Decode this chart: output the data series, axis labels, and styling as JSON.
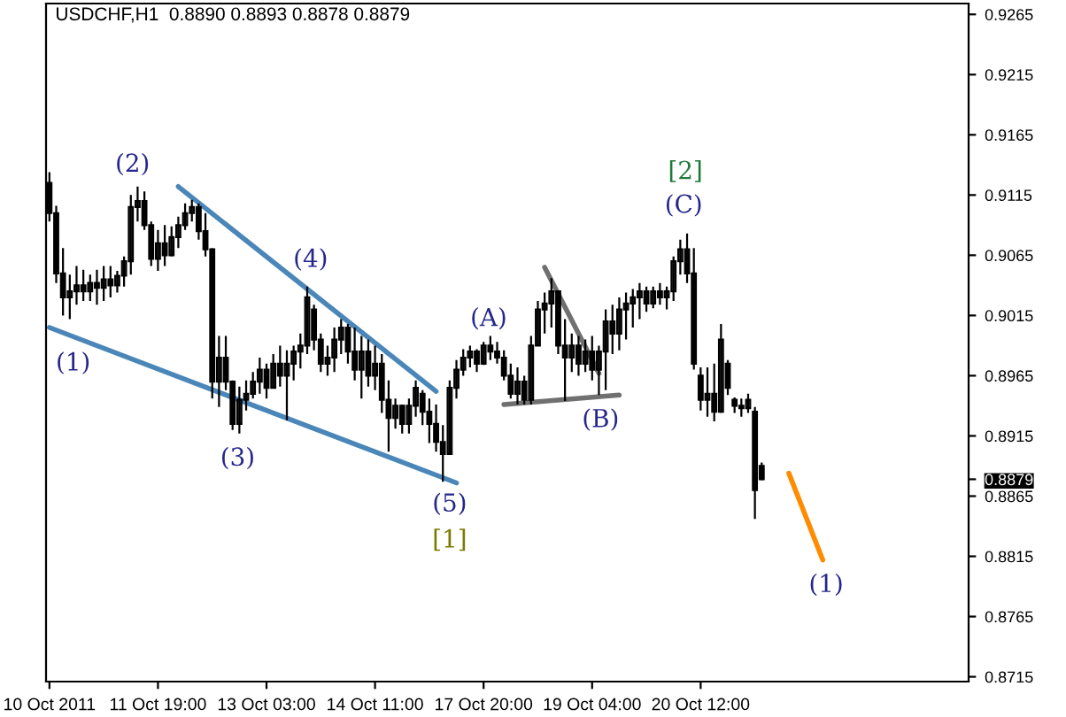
{
  "chart_data": {
    "type": "candlestick",
    "title": "USDCHF,H1  0.8890 0.8893 0.8878 0.8879",
    "categories": [
      "10 Oct 2011",
      null,
      null,
      null,
      null,
      null,
      null,
      null,
      null,
      null,
      null,
      null,
      null,
      null,
      null,
      null,
      "11 Oct 19:00",
      null,
      null,
      null,
      null,
      null,
      null,
      null,
      null,
      null,
      null,
      null,
      null,
      null,
      null,
      null,
      "13 Oct 03:00",
      null,
      null,
      null,
      null,
      null,
      null,
      null,
      null,
      null,
      null,
      null,
      null,
      null,
      null,
      null,
      "14 Oct 11:00",
      null,
      null,
      null,
      null,
      null,
      null,
      null,
      null,
      null,
      null,
      null,
      null,
      null,
      null,
      null,
      "17 Oct 20:00",
      null,
      null,
      null,
      null,
      null,
      null,
      null,
      null,
      null,
      null,
      null,
      null,
      null,
      null,
      null,
      "19 Oct 04:00",
      null,
      null,
      null,
      null,
      null,
      null,
      null,
      null,
      null,
      null,
      null,
      null,
      null,
      null,
      null,
      "20 Oct 12:00",
      null,
      null,
      null,
      null,
      null,
      null,
      null,
      null,
      null,
      null,
      null,
      null,
      null,
      null,
      null,
      null,
      null,
      null,
      null,
      null,
      null,
      null,
      null,
      null,
      null,
      null,
      null,
      null,
      null,
      null,
      null,
      null,
      null,
      null,
      null,
      null,
      null,
      null,
      null
    ],
    "color": "#000000",
    "ohlc": [
      [
        0.9125,
        0.9134,
        0.9093,
        0.91
      ],
      [
        0.91,
        0.9106,
        0.9042,
        0.905
      ],
      [
        0.905,
        0.9071,
        0.9015,
        0.903
      ],
      [
        0.903,
        0.9049,
        0.9012,
        0.9035
      ],
      [
        0.9035,
        0.9056,
        0.9024,
        0.904
      ],
      [
        0.904,
        0.9053,
        0.9027,
        0.9035
      ],
      [
        0.9035,
        0.9049,
        0.9027,
        0.9042
      ],
      [
        0.9042,
        0.9053,
        0.9024,
        0.9038
      ],
      [
        0.9038,
        0.9056,
        0.9027,
        0.9045
      ],
      [
        0.9045,
        0.9056,
        0.903,
        0.904
      ],
      [
        0.904,
        0.9052,
        0.9034,
        0.9048
      ],
      [
        0.9048,
        0.9064,
        0.9039,
        0.906
      ],
      [
        0.906,
        0.9115,
        0.9049,
        0.9105
      ],
      [
        0.9105,
        0.9122,
        0.9093,
        0.911
      ],
      [
        0.911,
        0.9118,
        0.9086,
        0.909
      ],
      [
        0.909,
        0.9093,
        0.9056,
        0.9062
      ],
      [
        0.9062,
        0.9086,
        0.9052,
        0.9075
      ],
      [
        0.9075,
        0.909,
        0.9056,
        0.9065
      ],
      [
        0.9065,
        0.9089,
        0.9064,
        0.908
      ],
      [
        0.908,
        0.9097,
        0.9071,
        0.909
      ],
      [
        0.909,
        0.9108,
        0.9086,
        0.91
      ],
      [
        0.91,
        0.9111,
        0.9093,
        0.9105
      ],
      [
        0.9105,
        0.9108,
        0.9078,
        0.9085
      ],
      [
        0.9085,
        0.91,
        0.9064,
        0.907
      ],
      [
        0.907,
        0.9071,
        0.8946,
        0.896
      ],
      [
        0.896,
        0.8998,
        0.8939,
        0.898
      ],
      [
        0.898,
        0.8998,
        0.8953,
        0.896
      ],
      [
        0.896,
        0.8961,
        0.892,
        0.8925
      ],
      [
        0.8925,
        0.8956,
        0.8917,
        0.8945
      ],
      [
        0.8945,
        0.8961,
        0.8936,
        0.895
      ],
      [
        0.895,
        0.8968,
        0.8946,
        0.896
      ],
      [
        0.896,
        0.898,
        0.895,
        0.897
      ],
      [
        0.897,
        0.8975,
        0.8946,
        0.8955
      ],
      [
        0.8955,
        0.8983,
        0.8955,
        0.8975
      ],
      [
        0.8975,
        0.899,
        0.8956,
        0.8965
      ],
      [
        0.8965,
        0.8986,
        0.8928,
        0.8975
      ],
      [
        0.8975,
        0.899,
        0.8961,
        0.8985
      ],
      [
        0.8985,
        0.9,
        0.8971,
        0.899
      ],
      [
        0.899,
        0.9039,
        0.8983,
        0.903
      ],
      [
        0.902,
        0.9024,
        0.8986,
        0.8995
      ],
      [
        0.8995,
        0.9,
        0.8968,
        0.8975
      ],
      [
        0.8975,
        0.899,
        0.8965,
        0.898
      ],
      [
        0.898,
        0.9005,
        0.8968,
        0.8995
      ],
      [
        0.8995,
        0.9012,
        0.8983,
        0.9005
      ],
      [
        0.9005,
        0.9008,
        0.8975,
        0.8985
      ],
      [
        0.8985,
        0.9005,
        0.8961,
        0.897
      ],
      [
        0.897,
        0.8998,
        0.8946,
        0.8985
      ],
      [
        0.8985,
        0.8995,
        0.8956,
        0.8965
      ],
      [
        0.8965,
        0.899,
        0.8953,
        0.8975
      ],
      [
        0.8975,
        0.8983,
        0.8934,
        0.8945
      ],
      [
        0.8945,
        0.8961,
        0.8902,
        0.893
      ],
      [
        0.893,
        0.8946,
        0.8921,
        0.894
      ],
      [
        0.894,
        0.8941,
        0.8917,
        0.8925
      ],
      [
        0.8925,
        0.8946,
        0.8917,
        0.894
      ],
      [
        0.894,
        0.8961,
        0.8931,
        0.8955
      ],
      [
        0.895,
        0.8953,
        0.8924,
        0.8935
      ],
      [
        0.8935,
        0.8946,
        0.8909,
        0.8925
      ],
      [
        0.8925,
        0.8941,
        0.8902,
        0.891
      ],
      [
        0.891,
        0.8924,
        0.8877,
        0.89
      ],
      [
        0.89,
        0.8961,
        0.89,
        0.8955
      ],
      [
        0.8955,
        0.8978,
        0.8946,
        0.897
      ],
      [
        0.897,
        0.8987,
        0.8965,
        0.898
      ],
      [
        0.898,
        0.899,
        0.8972,
        0.8985
      ],
      [
        0.8985,
        0.8987,
        0.8968,
        0.8975
      ],
      [
        0.8975,
        0.8993,
        0.8974,
        0.899
      ],
      [
        0.899,
        0.8998,
        0.8978,
        0.8985
      ],
      [
        0.8985,
        0.8993,
        0.8975,
        0.898
      ],
      [
        0.898,
        0.8986,
        0.8961,
        0.8965
      ],
      [
        0.8965,
        0.8975,
        0.8946,
        0.895
      ],
      [
        0.895,
        0.8972,
        0.8941,
        0.896
      ],
      [
        0.896,
        0.8965,
        0.8941,
        0.8945
      ],
      [
        0.8945,
        0.8998,
        0.8941,
        0.899
      ],
      [
        0.899,
        0.9027,
        0.899,
        0.902
      ],
      [
        0.902,
        0.9034,
        0.9,
        0.9025
      ],
      [
        0.9025,
        0.9046,
        0.9005,
        0.9035
      ],
      [
        0.9035,
        0.9035,
        0.8983,
        0.899
      ],
      [
        0.899,
        0.9012,
        0.8944,
        0.898
      ],
      [
        0.898,
        0.9,
        0.8968,
        0.899
      ],
      [
        0.899,
        0.8998,
        0.8965,
        0.8975
      ],
      [
        0.8975,
        0.8995,
        0.8968,
        0.8985
      ],
      [
        0.8985,
        0.8998,
        0.8961,
        0.897
      ],
      [
        0.897,
        0.899,
        0.8949,
        0.8985
      ],
      [
        0.8985,
        0.902,
        0.8953,
        0.901
      ],
      [
        0.901,
        0.9024,
        0.8983,
        0.9
      ],
      [
        0.9,
        0.903,
        0.8986,
        0.902
      ],
      [
        0.902,
        0.9034,
        0.8995,
        0.9025
      ],
      [
        0.9025,
        0.9037,
        0.9005,
        0.903
      ],
      [
        0.903,
        0.9042,
        0.9012,
        0.9035
      ],
      [
        0.9035,
        0.9039,
        0.9018,
        0.9025
      ],
      [
        0.9025,
        0.9039,
        0.9021,
        0.9035
      ],
      [
        0.9035,
        0.9042,
        0.9024,
        0.903
      ],
      [
        0.903,
        0.9039,
        0.902,
        0.9035
      ],
      [
        0.9035,
        0.9064,
        0.9027,
        0.906
      ],
      [
        0.906,
        0.9078,
        0.9049,
        0.907
      ],
      [
        0.907,
        0.9083,
        0.9042,
        0.905
      ],
      [
        0.905,
        0.9071,
        0.897,
        0.8975
      ],
      [
        0.8965,
        0.8972,
        0.8936,
        0.8945
      ],
      [
        0.8945,
        0.8972,
        0.8931,
        0.895
      ],
      [
        0.895,
        0.8975,
        0.8927,
        0.8935
      ],
      [
        0.8935,
        0.9008,
        0.8934,
        0.8995
      ],
      [
        0.8975,
        0.8978,
        0.8949,
        0.8955
      ],
      [
        0.8945,
        0.8947,
        0.8934,
        0.894
      ],
      [
        0.894,
        0.8946,
        0.8931,
        0.8938
      ],
      [
        0.8938,
        0.895,
        0.8934,
        0.8945
      ],
      [
        0.8935,
        0.8939,
        0.8846,
        0.887
      ],
      [
        0.889,
        0.8893,
        0.8878,
        0.8879
      ],
      null,
      null,
      null,
      null,
      null,
      null,
      null,
      null,
      null,
      null,
      null,
      null,
      null,
      null,
      null,
      null,
      null,
      null,
      null,
      null,
      null,
      null,
      null,
      null,
      null,
      null,
      null,
      null,
      null,
      null
    ],
    "series": [
      {
        "type": "line",
        "color": "#4a86b8",
        "values": [
          null,
          null,
          null,
          null,
          null,
          null,
          null,
          null,
          null,
          null,
          null,
          null,
          null,
          null,
          null,
          null,
          null,
          null,
          null,
          0.9122,
          null,
          null,
          null,
          null,
          null,
          null,
          null,
          null,
          null,
          null,
          null,
          null,
          null,
          null,
          null,
          null,
          null,
          null,
          null,
          null,
          null,
          null,
          null,
          null,
          null,
          null,
          null,
          null,
          null,
          null,
          null,
          null,
          null,
          null,
          null,
          null,
          null,
          0.8952,
          null,
          null,
          null,
          null,
          null,
          null,
          null,
          null,
          null,
          null,
          null,
          null,
          null,
          null,
          null,
          null,
          null,
          null,
          null,
          null,
          null,
          null,
          null,
          null,
          null,
          null,
          null,
          null,
          null,
          null,
          null,
          null,
          null,
          null,
          null,
          null,
          null,
          null,
          null,
          null,
          null,
          null,
          null,
          null,
          null,
          null,
          null,
          null,
          null,
          null,
          null,
          null,
          null,
          null,
          null,
          null,
          null,
          null,
          null,
          null,
          null,
          null,
          null,
          null,
          null,
          null,
          null,
          null,
          null,
          null,
          null,
          null,
          null,
          null,
          null,
          null,
          null,
          null
        ]
      },
      {
        "type": "line",
        "color": "#4a86b8",
        "values": [
          0.9005,
          null,
          null,
          null,
          null,
          null,
          null,
          null,
          null,
          null,
          null,
          null,
          null,
          null,
          null,
          null,
          null,
          null,
          null,
          null,
          null,
          null,
          null,
          null,
          null,
          null,
          null,
          null,
          null,
          null,
          null,
          null,
          null,
          null,
          null,
          null,
          null,
          null,
          null,
          null,
          null,
          null,
          null,
          null,
          null,
          null,
          null,
          null,
          null,
          null,
          null,
          null,
          null,
          null,
          null,
          null,
          null,
          null,
          null,
          null,
          0.8876,
          null,
          null,
          null,
          null,
          null,
          null,
          null,
          null,
          null,
          null,
          null,
          null,
          null,
          null,
          null,
          null,
          null,
          null,
          null,
          null,
          null,
          null,
          null,
          null,
          null,
          null,
          null,
          null,
          null,
          null,
          null,
          null,
          null,
          null,
          null,
          null,
          null,
          null,
          null,
          null,
          null,
          null,
          null,
          null,
          null,
          null,
          null,
          null,
          null,
          null,
          null,
          null,
          null,
          null,
          null,
          null,
          null,
          null,
          null,
          null,
          null,
          null,
          null,
          null,
          null,
          null,
          null,
          null,
          null,
          null,
          null,
          null,
          null,
          null,
          null
        ]
      },
      {
        "type": "line",
        "color": "#707070",
        "values": [
          null,
          null,
          null,
          null,
          null,
          null,
          null,
          null,
          null,
          null,
          null,
          null,
          null,
          null,
          null,
          null,
          null,
          null,
          null,
          null,
          null,
          null,
          null,
          null,
          null,
          null,
          null,
          null,
          null,
          null,
          null,
          null,
          null,
          null,
          null,
          null,
          null,
          null,
          null,
          null,
          null,
          null,
          null,
          null,
          null,
          null,
          null,
          null,
          null,
          null,
          null,
          null,
          null,
          null,
          null,
          null,
          null,
          null,
          null,
          null,
          null,
          null,
          null,
          null,
          null,
          null,
          null,
          0.8941,
          null,
          null,
          null,
          null,
          null,
          null,
          null,
          null,
          null,
          null,
          null,
          null,
          null,
          null,
          null,
          null,
          0.8949,
          null,
          null,
          null,
          null,
          null,
          null,
          null,
          null,
          null,
          null,
          null,
          null,
          null,
          null,
          null,
          null,
          null,
          null,
          null,
          null,
          null,
          null,
          null,
          null,
          null,
          null,
          null,
          null,
          null,
          null,
          null,
          null,
          null,
          null,
          null,
          null,
          null,
          null,
          null,
          null,
          null,
          null,
          null,
          null,
          null,
          null,
          null,
          null,
          null,
          null,
          null
        ]
      },
      {
        "type": "line",
        "color": "#707070",
        "values": [
          null,
          null,
          null,
          null,
          null,
          null,
          null,
          null,
          null,
          null,
          null,
          null,
          null,
          null,
          null,
          null,
          null,
          null,
          null,
          null,
          null,
          null,
          null,
          null,
          null,
          null,
          null,
          null,
          null,
          null,
          null,
          null,
          null,
          null,
          null,
          null,
          null,
          null,
          null,
          null,
          null,
          null,
          null,
          null,
          null,
          null,
          null,
          null,
          null,
          null,
          null,
          null,
          null,
          null,
          null,
          null,
          null,
          null,
          null,
          null,
          null,
          null,
          null,
          null,
          null,
          null,
          null,
          null,
          null,
          null,
          null,
          null,
          null,
          0.9055,
          null,
          null,
          null,
          null,
          null,
          null,
          null,
          0.8967,
          null,
          null,
          null,
          null,
          null,
          null,
          null,
          null,
          null,
          null,
          null,
          null,
          null,
          null,
          null,
          null,
          null,
          null,
          null,
          null,
          null,
          null,
          null,
          null,
          null,
          null,
          null,
          null,
          null,
          null,
          null,
          null,
          null,
          null,
          null,
          null,
          null,
          null,
          null,
          null,
          null,
          null,
          null,
          null,
          null,
          null,
          null,
          null,
          null,
          null,
          null,
          null,
          null,
          null
        ]
      },
      {
        "type": "line",
        "color": "#ff8c00",
        "values": [
          null,
          null,
          null,
          null,
          null,
          null,
          null,
          null,
          null,
          null,
          null,
          null,
          null,
          null,
          null,
          null,
          null,
          null,
          null,
          null,
          null,
          null,
          null,
          null,
          null,
          null,
          null,
          null,
          null,
          null,
          null,
          null,
          null,
          null,
          null,
          null,
          null,
          null,
          null,
          null,
          null,
          null,
          null,
          null,
          null,
          null,
          null,
          null,
          null,
          null,
          null,
          null,
          null,
          null,
          null,
          null,
          null,
          null,
          null,
          null,
          null,
          null,
          null,
          null,
          null,
          null,
          null,
          null,
          null,
          null,
          null,
          null,
          null,
          null,
          null,
          null,
          null,
          null,
          null,
          null,
          null,
          null,
          null,
          null,
          null,
          null,
          null,
          null,
          null,
          null,
          null,
          null,
          null,
          null,
          null,
          null,
          null,
          null,
          null,
          null,
          null,
          null,
          null,
          null,
          null,
          null,
          null,
          null,
          null,
          0.8884,
          null,
          null,
          null,
          null,
          0.8812,
          null,
          null,
          null,
          null,
          null,
          null,
          null,
          null,
          null,
          null,
          null,
          null,
          null,
          null,
          null,
          null,
          null,
          null,
          null,
          null,
          null
        ]
      }
    ],
    "annotations": [
      "(1)",
      "(2)",
      "(3)",
      "(4)",
      "(5)",
      "[1]",
      "(A)",
      "(B)",
      "[2]",
      "(C)",
      "(1)"
    ],
    "ylim": [
      0.8711,
      0.9274
    ],
    "yticks": [
      0.8715,
      0.8765,
      0.8815,
      0.8865,
      {
        "value": 0.8879,
        "label": "0.8879"
      },
      0.8915,
      0.8965,
      0.9015,
      0.9065,
      0.9115,
      0.9165,
      0.9215,
      0.9265
    ],
    "grid": false,
    "legend": false
  }
}
